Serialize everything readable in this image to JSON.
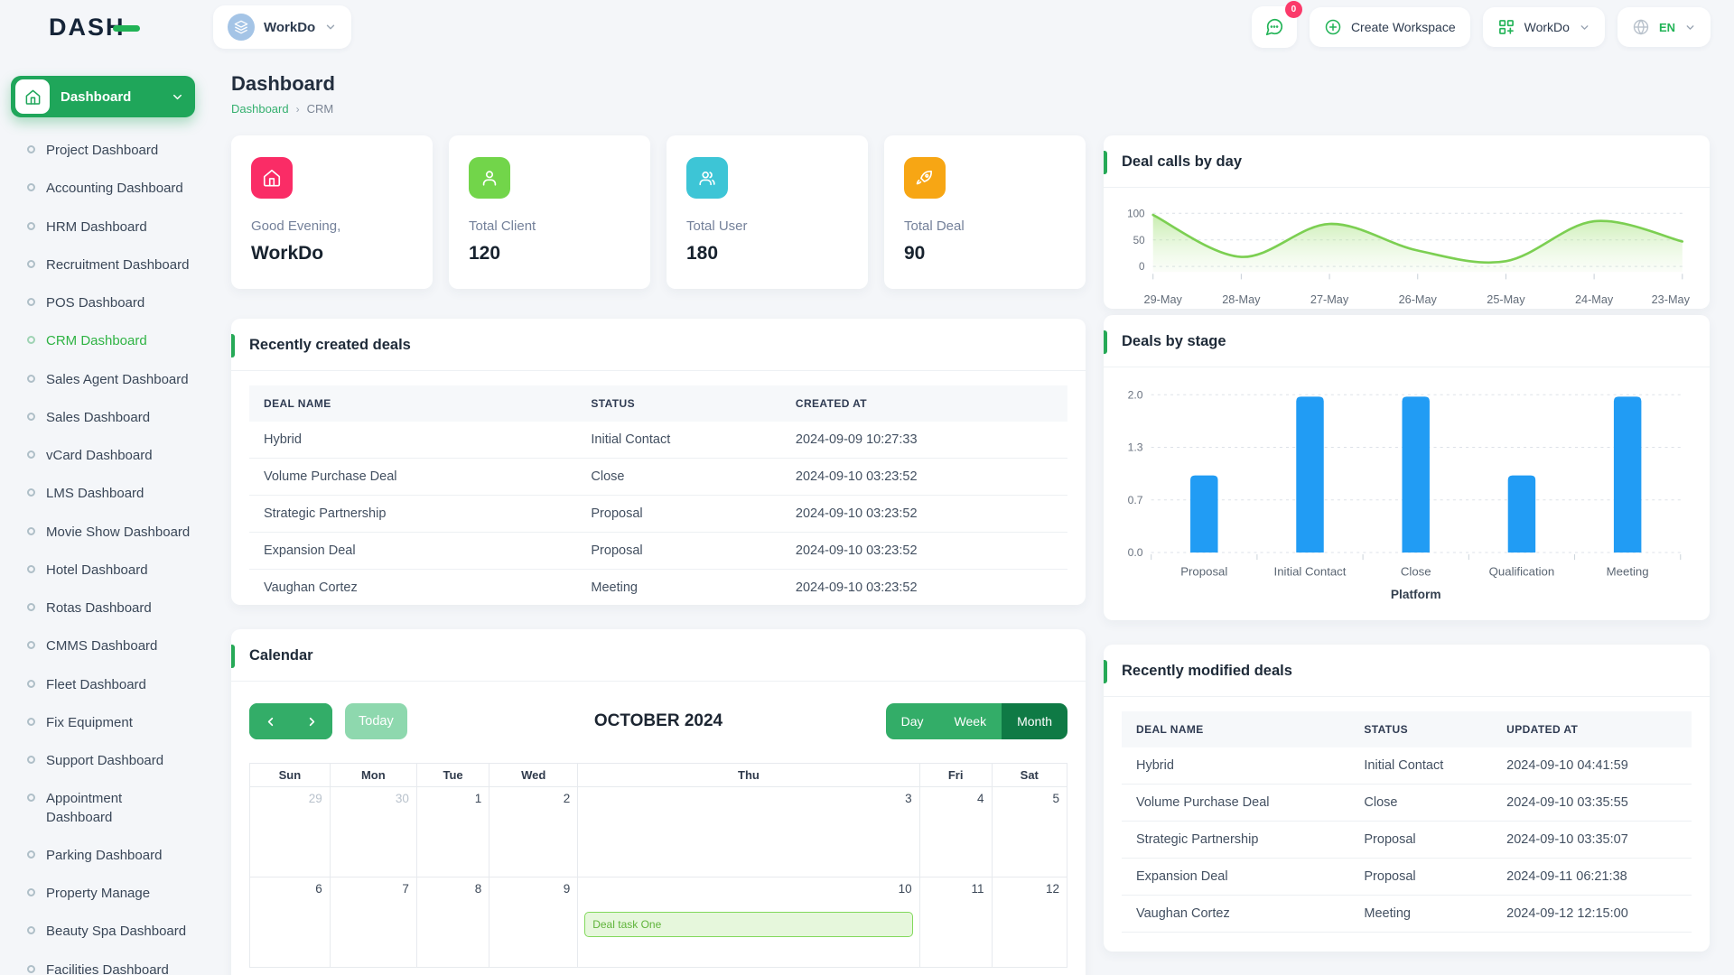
{
  "brand": {
    "name": "DASH"
  },
  "header": {
    "workspace_pill": {
      "label": "WorkDo"
    },
    "messages_badge": "0",
    "create_workspace_label": "Create Workspace",
    "workspace_menu_label": "WorkDo",
    "language": "EN"
  },
  "sidebar": {
    "header": {
      "label": "Dashboard"
    },
    "items": [
      {
        "label": "Project Dashboard"
      },
      {
        "label": "Accounting Dashboard"
      },
      {
        "label": "HRM Dashboard"
      },
      {
        "label": "Recruitment Dashboard"
      },
      {
        "label": "POS Dashboard"
      },
      {
        "label": "CRM Dashboard",
        "active": true
      },
      {
        "label": "Sales Agent Dashboard"
      },
      {
        "label": "Sales Dashboard"
      },
      {
        "label": "vCard Dashboard"
      },
      {
        "label": "LMS Dashboard"
      },
      {
        "label": "Movie Show Dashboard"
      },
      {
        "label": "Hotel Dashboard"
      },
      {
        "label": "Rotas Dashboard"
      },
      {
        "label": "CMMS Dashboard"
      },
      {
        "label": "Fleet Dashboard"
      },
      {
        "label": "Fix Equipment"
      },
      {
        "label": "Support Dashboard"
      },
      {
        "label": "Appointment\nDashboard"
      },
      {
        "label": "Parking Dashboard"
      },
      {
        "label": "Property Manage"
      },
      {
        "label": "Beauty Spa Dashboard"
      },
      {
        "label": "Facilities Dashboard"
      }
    ]
  },
  "page": {
    "title": "Dashboard",
    "breadcrumb": {
      "home": "Dashboard",
      "current": "CRM"
    }
  },
  "stats": [
    {
      "label": "Good Evening,",
      "value": "WorkDo",
      "icon": "home-icon",
      "color": "#fa2c66"
    },
    {
      "label": "Total Client",
      "value": "120",
      "icon": "user-icon",
      "color": "#72d54a"
    },
    {
      "label": "Total User",
      "value": "180",
      "icon": "users-icon",
      "color": "#3dc5d6"
    },
    {
      "label": "Total Deal",
      "value": "90",
      "icon": "rocket-icon",
      "color": "#f7a614"
    }
  ],
  "chart_data": [
    {
      "type": "area",
      "title": "Deal calls by day",
      "x": [
        "29-May",
        "28-May",
        "27-May",
        "26-May",
        "25-May",
        "24-May",
        "23-May"
      ],
      "series": [
        {
          "name": "Deal calls",
          "values": [
            97,
            18,
            80,
            30,
            10,
            85,
            47
          ]
        }
      ],
      "ylim": [
        0,
        100
      ],
      "yticks": [
        100,
        50,
        0
      ],
      "grid": "dashed-horizontal",
      "legend": "none",
      "color": "#7ccf52"
    },
    {
      "type": "bar",
      "title": "Deals by stage",
      "categories": [
        "Proposal",
        "Initial Contact",
        "Close",
        "Qualification",
        "Meeting"
      ],
      "values": [
        1,
        2,
        2,
        1,
        2
      ],
      "xlabel": "Platform",
      "ylabel": "",
      "ylim": [
        0,
        2
      ],
      "ytick_labels": [
        "0.0",
        "0.7",
        "1.3",
        "2.0"
      ],
      "grid": "dashed-horizontal",
      "legend": "none",
      "color": "#219cf4"
    }
  ],
  "recent_created": {
    "title": "Recently created deals",
    "headers": [
      "DEAL NAME",
      "STATUS",
      "CREATED AT"
    ],
    "rows": [
      [
        "Hybrid",
        "Initial Contact",
        "2024-09-09 10:27:33"
      ],
      [
        "Volume Purchase Deal",
        "Close",
        "2024-09-10 03:23:52"
      ],
      [
        "Strategic Partnership",
        "Proposal",
        "2024-09-10 03:23:52"
      ],
      [
        "Expansion Deal",
        "Proposal",
        "2024-09-10 03:23:52"
      ],
      [
        "Vaughan Cortez",
        "Meeting",
        "2024-09-10 03:23:52"
      ]
    ]
  },
  "recent_modified": {
    "title": "Recently modified deals",
    "headers": [
      "DEAL NAME",
      "STATUS",
      "UPDATED AT"
    ],
    "rows": [
      [
        "Hybrid",
        "Initial Contact",
        "2024-09-10 04:41:59"
      ],
      [
        "Volume Purchase Deal",
        "Close",
        "2024-09-10 03:35:55"
      ],
      [
        "Strategic Partnership",
        "Proposal",
        "2024-09-10 03:35:07"
      ],
      [
        "Expansion Deal",
        "Proposal",
        "2024-09-11 06:21:38"
      ],
      [
        "Vaughan Cortez",
        "Meeting",
        "2024-09-12 12:15:00"
      ]
    ]
  },
  "calendar": {
    "title": "Calendar",
    "toolbar": {
      "today_label": "Today",
      "month_title": "OCTOBER 2024",
      "views": [
        "Day",
        "Week",
        "Month"
      ],
      "active_view": "Month"
    },
    "weekdays": [
      "Sun",
      "Mon",
      "Tue",
      "Wed",
      "Thu",
      "Fri",
      "Sat"
    ],
    "weeks": [
      [
        {
          "day": "29",
          "muted": true
        },
        {
          "day": "30",
          "muted": true
        },
        {
          "day": "1"
        },
        {
          "day": "2"
        },
        {
          "day": "3"
        },
        {
          "day": "4"
        },
        {
          "day": "5"
        }
      ],
      [
        {
          "day": "6"
        },
        {
          "day": "7"
        },
        {
          "day": "8"
        },
        {
          "day": "9"
        },
        {
          "day": "10",
          "event": "Deal task One"
        },
        {
          "day": "11"
        },
        {
          "day": "12"
        }
      ]
    ]
  }
}
